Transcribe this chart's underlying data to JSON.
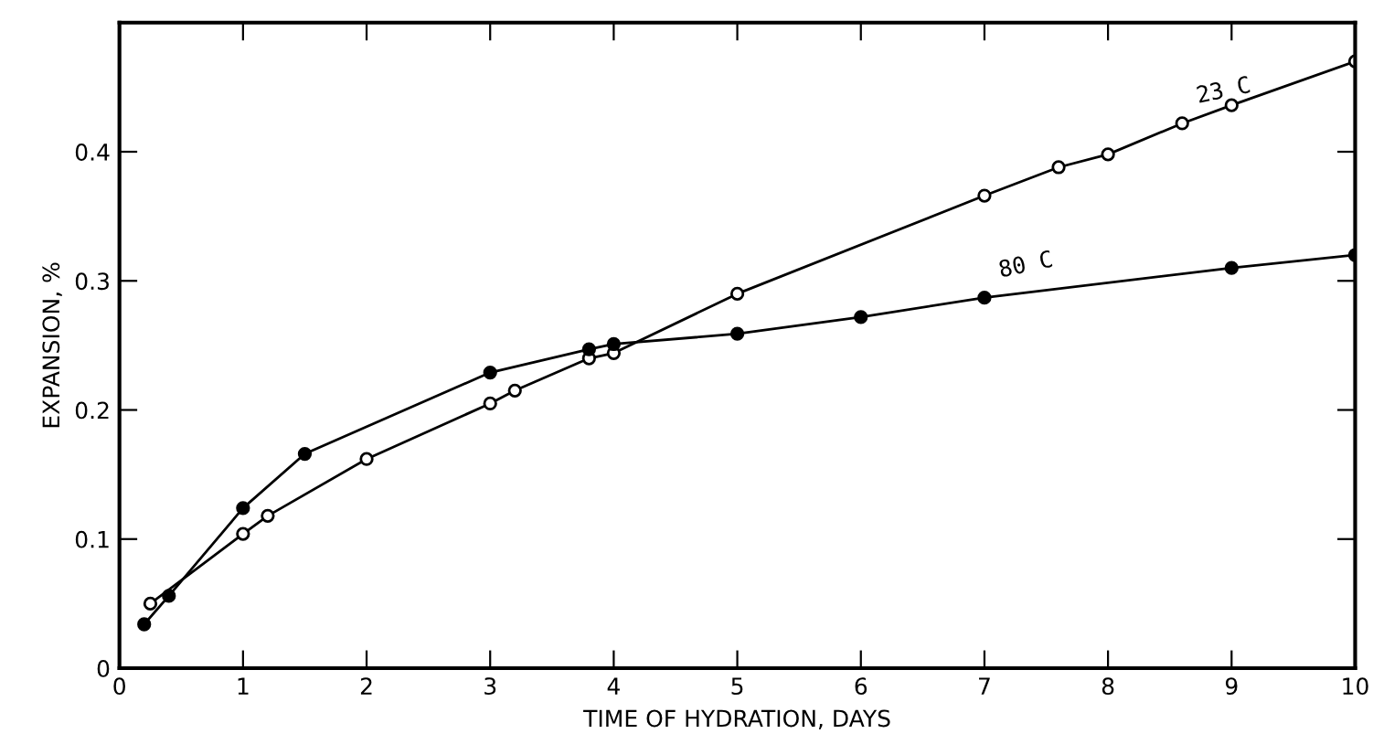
{
  "chart_data": {
    "type": "line",
    "xlabel": "TIME OF HYDRATION, DAYS",
    "ylabel": "EXPANSION, %",
    "xlim": [
      0,
      10
    ],
    "ylim": [
      0,
      0.5
    ],
    "xticks": [
      0,
      1,
      2,
      3,
      4,
      5,
      6,
      7,
      8,
      9,
      10
    ],
    "yticks": [
      0,
      0.1,
      0.2,
      0.3,
      0.4
    ],
    "grid": false,
    "legend": false,
    "line_style": "solid",
    "series": [
      {
        "name": "23 C",
        "color": "#000000",
        "marker": "circle",
        "x": [
          0.25,
          1,
          1.2,
          2,
          3,
          3.2,
          3.8,
          4,
          5,
          7,
          7.6,
          8,
          8.6,
          9,
          10
        ],
        "values": [
          0.05,
          0.104,
          0.118,
          0.162,
          0.205,
          0.215,
          0.24,
          0.244,
          0.29,
          0.366,
          0.388,
          0.398,
          0.422,
          0.436,
          0.47
        ]
      },
      {
        "name": "80 C",
        "color": "#000000",
        "marker": "circle",
        "x": [
          0.2,
          0.4,
          1,
          1.5,
          3,
          3.8,
          4,
          5,
          6,
          7,
          9,
          10
        ],
        "values": [
          0.034,
          0.056,
          0.124,
          0.166,
          0.229,
          0.247,
          0.251,
          0.259,
          0.272,
          0.287,
          0.31,
          0.32
        ]
      }
    ]
  }
}
